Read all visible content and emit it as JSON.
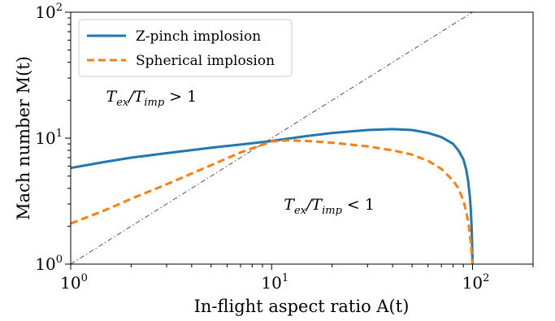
{
  "chart_data": {
    "type": "line",
    "title": "",
    "xlabel": "In-flight aspect ratio  A(t)",
    "ylabel": "Mach number  M(t)",
    "xscale": "log",
    "yscale": "log",
    "xlim": [
      1,
      200
    ],
    "ylim": [
      1,
      100
    ],
    "grid": false,
    "legend_position": "top-left",
    "x_ticks": [
      {
        "value": 1,
        "base": "10",
        "exp": "0"
      },
      {
        "value": 10,
        "base": "10",
        "exp": "1"
      },
      {
        "value": 100,
        "base": "10",
        "exp": "2"
      }
    ],
    "y_ticks": [
      {
        "value": 1,
        "base": "10",
        "exp": "0"
      },
      {
        "value": 10,
        "base": "10",
        "exp": "1"
      },
      {
        "value": 100,
        "base": "10",
        "exp": "2"
      }
    ],
    "series": [
      {
        "name": "Z-pinch implosion",
        "color": "#1f77b4",
        "style": "solid",
        "x": [
          1,
          1.5,
          2,
          3,
          5,
          7,
          10,
          15,
          20,
          30,
          40,
          50,
          60,
          70,
          80,
          85,
          90,
          93,
          95,
          97,
          98,
          99,
          99.5,
          100
        ],
        "y": [
          5.8,
          6.5,
          7.0,
          7.6,
          8.4,
          8.9,
          9.5,
          10.4,
          11.0,
          11.6,
          11.8,
          11.6,
          11.0,
          10.2,
          9.0,
          8.0,
          6.8,
          5.6,
          4.6,
          3.4,
          2.7,
          1.9,
          1.4,
          1.0
        ]
      },
      {
        "name": "Spherical implosion",
        "color": "#ff7f0e",
        "style": "dashed",
        "x": [
          1,
          1.5,
          2,
          3,
          5,
          7,
          10,
          12,
          15,
          20,
          30,
          40,
          50,
          60,
          70,
          80,
          85,
          90,
          93,
          95,
          97,
          98,
          99,
          99.5,
          100
        ],
        "y": [
          2.1,
          2.7,
          3.3,
          4.3,
          6.1,
          7.7,
          9.4,
          9.6,
          9.5,
          9.2,
          8.6,
          8.0,
          7.4,
          6.6,
          5.7,
          4.6,
          4.0,
          3.2,
          2.6,
          2.2,
          1.7,
          1.45,
          1.2,
          1.08,
          1.0
        ]
      }
    ],
    "reference_line": {
      "x": [
        1,
        100
      ],
      "y": [
        1,
        100
      ],
      "color": "#555555",
      "style": "dash-dot"
    },
    "annotations": [
      {
        "text_main": "T",
        "sub1": "ex",
        "slash": "/T",
        "sub2": "imp",
        "relation": " > 1",
        "x": 1.5,
        "y": 19.5
      },
      {
        "text_main": "T",
        "sub1": "ex",
        "slash": "/T",
        "sub2": "imp",
        "relation": " < 1",
        "x": 11.5,
        "y": 2.7
      }
    ]
  }
}
